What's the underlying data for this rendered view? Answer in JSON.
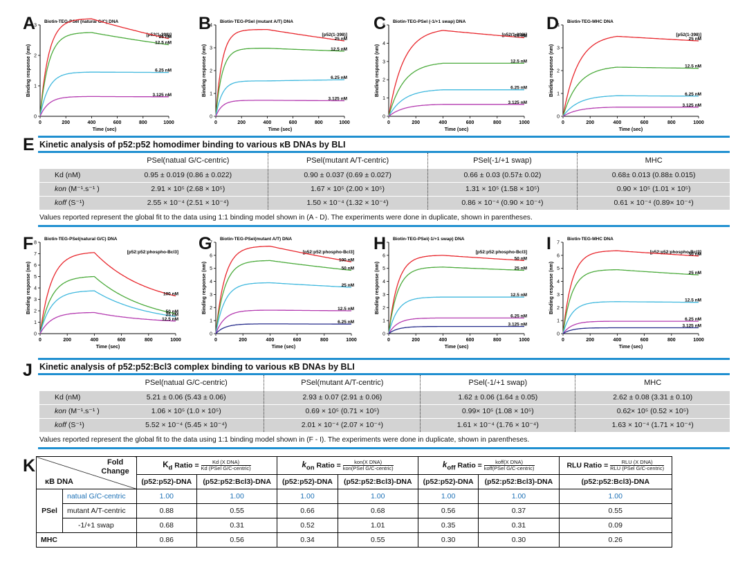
{
  "panel_letters": [
    "A",
    "B",
    "C",
    "D",
    "E",
    "F",
    "G",
    "H",
    "I",
    "J",
    "K"
  ],
  "chart_data": [
    {
      "type": "line",
      "title": "Biotin-TEG-PSel (natural G/C) DNA",
      "xlabel": "Time (sec)",
      "ylabel": "Binding response (nm)",
      "xlim": [
        0,
        1000
      ],
      "ylim": [
        0,
        3
      ],
      "xticks": [
        0,
        200,
        400,
        600,
        800,
        1000
      ],
      "yticks": [
        0,
        1,
        2,
        3
      ],
      "legend": "[p52(1-398)]",
      "ka": 0.015,
      "kd": 0.00045,
      "series": [
        {
          "name": "25 nM",
          "color": "#e8252b",
          "peak": 3.2,
          "end": 2.55
        },
        {
          "name": "12.5 nM",
          "color": "#4aaa3a",
          "peak": 2.75,
          "end": 2.35
        },
        {
          "name": "6.25 nM",
          "color": "#3fb8de",
          "peak": 1.45,
          "end": 1.44
        },
        {
          "name": "3.125 nM",
          "color": "#b43ab0",
          "peak": 0.65,
          "end": 0.64
        }
      ]
    },
    {
      "type": "line",
      "title": "Biotin-TEG-PSel (mutant A/T) DNA",
      "xlabel": "Time (sec)",
      "ylabel": "Binding response (nm)",
      "xlim": [
        0,
        1000
      ],
      "ylim": [
        0,
        4
      ],
      "xticks": [
        0,
        200,
        400,
        600,
        800,
        1000
      ],
      "yticks": [
        0,
        1,
        2,
        3,
        4
      ],
      "legend": "[p52(1-398)]",
      "ka": 0.02,
      "kd": 0.0003,
      "series": [
        {
          "name": "25 nM",
          "color": "#e8252b",
          "peak": 3.8,
          "end": 3.3
        },
        {
          "name": "12.5 nM",
          "color": "#4aaa3a",
          "peak": 2.98,
          "end": 2.85
        },
        {
          "name": "6.25 nM",
          "color": "#3fb8de",
          "peak": 1.55,
          "end": 1.6
        },
        {
          "name": "3.125 nM",
          "color": "#b43ab0",
          "peak": 0.7,
          "end": 0.68
        }
      ]
    },
    {
      "type": "line",
      "title": "Biotin-TEG-PSel (-1/+1 swap) DNA",
      "xlabel": "Time (sec)",
      "ylabel": "Binding response (nm)",
      "xlim": [
        0,
        1000
      ],
      "ylim": [
        0,
        5
      ],
      "xticks": [
        0,
        200,
        400,
        600,
        800,
        1000
      ],
      "yticks": [
        0,
        1,
        2,
        3,
        4,
        5
      ],
      "legend": "[p52(1-398)]",
      "ka": 0.009,
      "kd": 0.0002,
      "series": [
        {
          "name": "25 nM",
          "color": "#e8252b",
          "peak": 4.7,
          "end": 4.3
        },
        {
          "name": "12.5 nM",
          "color": "#4aaa3a",
          "peak": 2.9,
          "end": 2.9
        },
        {
          "name": "6.25 nM",
          "color": "#3fb8de",
          "peak": 1.45,
          "end": 1.45
        },
        {
          "name": "3.125 nM",
          "color": "#b43ab0",
          "peak": 0.65,
          "end": 0.65
        }
      ]
    },
    {
      "type": "line",
      "title": "Biotin-TEG-MHC DNA",
      "xlabel": "Time (sec)",
      "ylabel": "Binding response (nm)",
      "xlim": [
        0,
        1000
      ],
      "ylim": [
        0,
        4
      ],
      "xticks": [
        0,
        200,
        400,
        600,
        800,
        1000
      ],
      "yticks": [
        0,
        1,
        2,
        3,
        4
      ],
      "legend": "[p52(1-398)]",
      "ka": 0.009,
      "kd": 0.0001,
      "series": [
        {
          "name": "25 nM",
          "color": "#e8252b",
          "peak": 3.5,
          "end": 3.3
        },
        {
          "name": "12.5 nM",
          "color": "#4aaa3a",
          "peak": 2.15,
          "end": 2.1
        },
        {
          "name": "6.25 nM",
          "color": "#3fb8de",
          "peak": 0.9,
          "end": 0.88
        },
        {
          "name": "3.125 nM",
          "color": "#b43ab0",
          "peak": 0.4,
          "end": 0.4
        }
      ]
    },
    {
      "type": "line",
      "title": "Biotin-TEG-PSel(natural G/C) DNA",
      "xlabel": "Time (sec)",
      "ylabel": "Binding response (nm)",
      "xlim": [
        0,
        1000
      ],
      "ylim": [
        0,
        8
      ],
      "xticks": [
        0,
        200,
        400,
        600,
        800,
        1000
      ],
      "yticks": [
        0,
        1,
        2,
        3,
        4,
        5,
        6,
        7,
        8
      ],
      "legend": "[p52:p52:phospho-Bcl3]",
      "ka": 0.012,
      "kd": 0.0025,
      "series": [
        {
          "name": "100 nM",
          "color": "#e8252b",
          "peak": 7.1,
          "end": 3.3
        },
        {
          "name": "50 nM",
          "color": "#4aaa3a",
          "peak": 5.0,
          "end": 1.75
        },
        {
          "name": "25 nM",
          "color": "#3fb8de",
          "peak": 3.75,
          "end": 1.5
        },
        {
          "name": "12.5 nM",
          "color": "#b43ab0",
          "peak": 1.85,
          "end": 1.1
        }
      ]
    },
    {
      "type": "line",
      "title": "Biotin-TEG-PSel(mutant A/T) DNA",
      "xlabel": "Time (sec)",
      "ylabel": "Binding response (nm)",
      "xlim": [
        0,
        1000
      ],
      "ylim": [
        0,
        7
      ],
      "xticks": [
        0,
        200,
        400,
        600,
        800,
        1000
      ],
      "yticks": [
        0,
        1,
        2,
        3,
        4,
        5,
        6,
        7
      ],
      "legend": "[p52:p52:phospho-Bcl3]",
      "ka": 0.015,
      "kd": 0.0004,
      "series": [
        {
          "name": "100 nM",
          "color": "#e8252b",
          "peak": 6.7,
          "end": 5.5
        },
        {
          "name": "50 nM",
          "color": "#4aaa3a",
          "peak": 5.6,
          "end": 4.85
        },
        {
          "name": "25 nM",
          "color": "#3fb8de",
          "peak": 3.9,
          "end": 3.55
        },
        {
          "name": "12.5 nM",
          "color": "#b43ab0",
          "peak": 1.8,
          "end": 1.75
        },
        {
          "name": "6.25 nM",
          "color": "#242a8a",
          "peak": 0.75,
          "end": 0.73
        }
      ]
    },
    {
      "type": "line",
      "title": "Biotin-TEG-PSel(-1/+1 swap) DNA",
      "xlabel": "Time (sec)",
      "ylabel": "Binding response (nm)",
      "xlim": [
        0,
        1000
      ],
      "ylim": [
        0,
        7
      ],
      "xticks": [
        0,
        200,
        400,
        600,
        800,
        1000
      ],
      "yticks": [
        0,
        1,
        2,
        3,
        4,
        5,
        6,
        7
      ],
      "legend": "[p52:p52:phospho-Bcl3]",
      "ka": 0.015,
      "kd": 0.00025,
      "series": [
        {
          "name": "50 nM",
          "color": "#e8252b",
          "peak": 6.0,
          "end": 5.6
        },
        {
          "name": "25 nM",
          "color": "#4aaa3a",
          "peak": 5.1,
          "end": 4.85
        },
        {
          "name": "12.5 nM",
          "color": "#3fb8de",
          "peak": 2.8,
          "end": 2.8
        },
        {
          "name": "6.25 nM",
          "color": "#b43ab0",
          "peak": 1.2,
          "end": 1.2
        },
        {
          "name": "3.125 nM",
          "color": "#242a8a",
          "peak": 0.55,
          "end": 0.55
        }
      ]
    },
    {
      "type": "line",
      "title": "Biotin-TEG-MHC DNA",
      "xlabel": "Time (sec)",
      "ylabel": "Binding response (nm)",
      "xlim": [
        0,
        1000
      ],
      "ylim": [
        0,
        7
      ],
      "xticks": [
        0,
        200,
        400,
        600,
        800,
        1000
      ],
      "yticks": [
        0,
        1,
        2,
        3,
        4,
        5,
        6,
        7
      ],
      "legend": "[p52:p52:phospho-Bcl3]",
      "ka": 0.015,
      "kd": 0.0003,
      "series": [
        {
          "name": "50 nM",
          "color": "#e8252b",
          "peak": 6.35,
          "end": 5.95
        },
        {
          "name": "25 nM",
          "color": "#4aaa3a",
          "peak": 4.9,
          "end": 4.5
        },
        {
          "name": "12.5 nM",
          "color": "#3fb8de",
          "peak": 2.45,
          "end": 2.4
        },
        {
          "name": "6.25 nM",
          "color": "#b43ab0",
          "peak": 0.95,
          "end": 0.95
        },
        {
          "name": "3.125 nM",
          "color": "#242a8a",
          "peak": 0.45,
          "end": 0.45
        }
      ]
    }
  ],
  "table_E": {
    "title": "Kinetic analysis of p52:p52 homodimer binding to various κB DNAs by BLI",
    "columns": [
      "PSel(natual G/C-centric)",
      "PSel(mutant A/T-centric)",
      "PSel(-1/+1 swap)",
      "MHC"
    ],
    "rows": [
      {
        "label": "Kd",
        "unit": "(nM)",
        "sub": "d",
        "values": [
          "0.95 ± 0.019 (0.86 ± 0.022)",
          "0.90 ± 0.037 (0.69 ± 0.027)",
          "0.66 ± 0.03 (0.57± 0.02)",
          "0.68± 0.013 (0.88± 0.015)"
        ]
      },
      {
        "label": "kon",
        "unit": "(M⁻¹.s⁻¹ )",
        "sub": "on",
        "values": [
          "2.91 × 10⁵ (2.68 × 10⁵)",
          "1.67 × 10⁵ (2.00 × 10⁵)",
          "1.31 × 10⁵ (1.58 × 10⁵)",
          "0.90 × 10⁵ (1.01 × 10⁵)"
        ]
      },
      {
        "label": "koff",
        "unit": "(S⁻¹)",
        "sub": "off",
        "values": [
          "2.55 × 10⁻⁴ (2.51 × 10⁻⁴)",
          "1.50 × 10⁻⁴ (1.32 × 10⁻⁴)",
          "0.86 × 10⁻⁴ (0.90 × 10⁻⁴)",
          "0.61 × 10⁻⁴ (0.89× 10⁻⁴)"
        ]
      }
    ],
    "footnote": "Values reported represent the global fit to the data using 1:1 binding model shown in (A - D). The experiments were done in duplicate, shown in parentheses."
  },
  "table_J": {
    "title": "Kinetic analysis of p52:p52:Bcl3 complex binding to various κB DNAs by BLI",
    "columns": [
      "PSel(natual G/C-centric)",
      "PSel(mutant A/T-centric)",
      "PSel(-1/+1 swap)",
      "MHC"
    ],
    "rows": [
      {
        "label": "Kd",
        "unit": "(nM)",
        "sub": "d",
        "values": [
          "5.21 ± 0.06 (5.43 ± 0.06)",
          "2.93 ± 0.07 (2.91 ± 0.06)",
          "1.62 ± 0.06 (1.64 ± 0.05)",
          "2.62 ± 0.08 (3.31 ± 0.10)"
        ]
      },
      {
        "label": "kon",
        "unit": "(M⁻¹.s⁻¹ )",
        "sub": "on",
        "values": [
          "1.06 × 10⁵ (1.0 × 10⁵)",
          "0.69 × 10⁵ (0.71 × 10⁵)",
          "0.99× 10⁵ (1.08 × 10⁵)",
          "0.62× 10⁵ (0.52 × 10⁵)"
        ]
      },
      {
        "label": "koff",
        "unit": "(S⁻¹)",
        "sub": "off",
        "values": [
          "5.52 × 10⁻⁴ (5.45 × 10⁻⁴)",
          "2.01 × 10⁻⁴ (2.07 × 10⁻⁴)",
          "1.61 × 10⁻⁴ (1.76 × 10⁻⁴)",
          "1.63 × 10⁻⁴ (1.71 × 10⁻⁴)"
        ]
      }
    ],
    "footnote": "Values reported represent the global fit to the data using 1:1 binding model shown in (F - I). The experiments were done in duplicate, shown in parentheses."
  },
  "table_K": {
    "fold_change": "Fold Change",
    "kb_dna": "κB DNA",
    "kd_ratio": "Ratio =",
    "kd_num": "Kd (X DNA)",
    "kd_den": "Kd (PSel G/C-centric)",
    "kon_ratio": "Ratio =",
    "kon_num": "kon(X DNA)",
    "kon_den": "kon(PSel G/C-centric)",
    "koff_ratio": "Ratio =",
    "koff_num": "koff(X DNA)",
    "koff_den": "koff(PSel G/C-centric)",
    "rlu_ratio": "RLU Ratio =",
    "rlu_num": "RLU (X DNA)",
    "rlu_den": "RLU (PSel G/C-centric)",
    "sub_headers": [
      "(p52:p52)-DNA",
      "(p52:p52:Bcl3)-DNA",
      "(p52:p52)-DNA",
      "(p52:p52:Bcl3)-DNA",
      "(p52:p52)-DNA",
      "(p52:p52:Bcl3)-DNA",
      "(p52:p52:Bcl3)-DNA"
    ],
    "psel": "PSel",
    "mhc": "MHC",
    "rows": [
      {
        "name": "natual G/C-centric",
        "values": [
          "1.00",
          "1.00",
          "1.00",
          "1.00",
          "1.00",
          "1.00",
          "1.00"
        ]
      },
      {
        "name": "mutant A/T-centric",
        "values": [
          "0.88",
          "0.55",
          "0.66",
          "0.68",
          "0.56",
          "0.37",
          "0.55"
        ]
      },
      {
        "name": "-1/+1 swap",
        "values": [
          "0.68",
          "0.31",
          "0.52",
          "1.01",
          "0.35",
          "0.31",
          "0.09"
        ]
      }
    ],
    "mhc_values": [
      "0.86",
      "0.56",
      "0.34",
      "0.55",
      "0.30",
      "0.30",
      "0.26"
    ]
  }
}
